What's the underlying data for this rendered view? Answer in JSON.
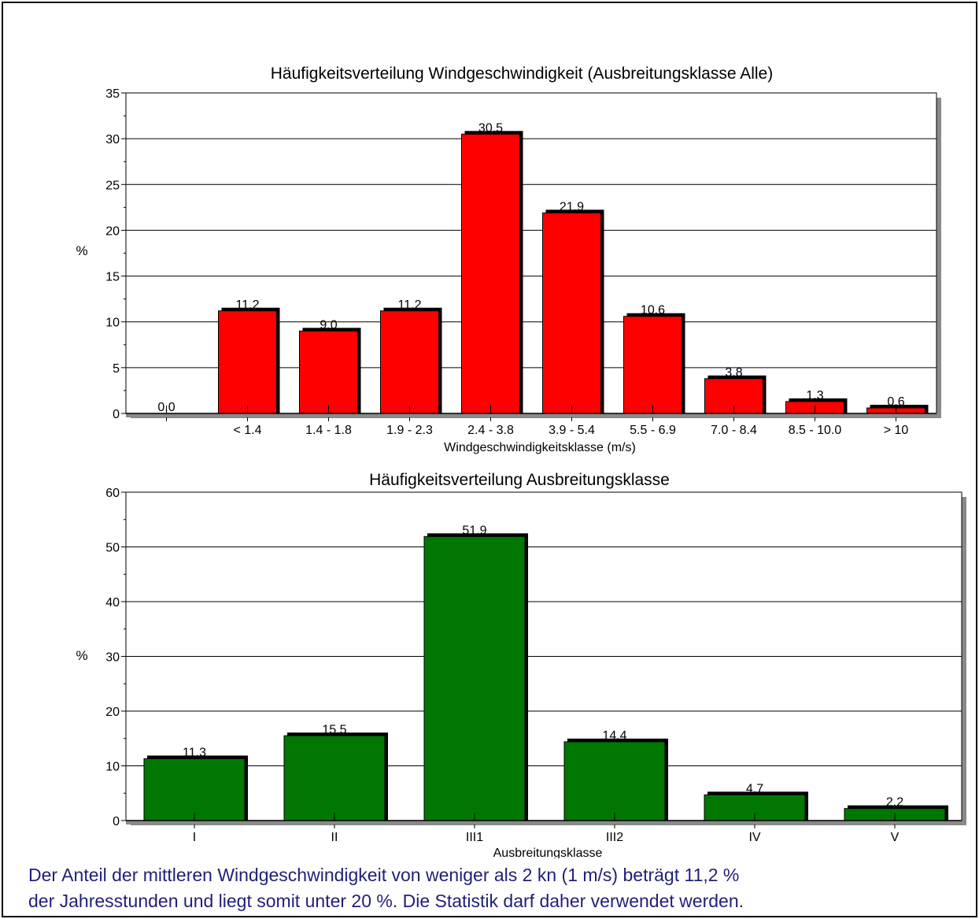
{
  "colors": {
    "chart1_bar": "#ff0000",
    "chart2_bar": "#007700",
    "shadow": "#000000",
    "plot_shadow": "#8a8a8a"
  },
  "chart_data": [
    {
      "type": "bar",
      "title": "Häufigkeitsverteilung Windgeschwindigkeit (Ausbreitungsklasse Alle)",
      "xlabel": "Windgeschwindigkeitsklasse (m/s)",
      "ylabel": "%",
      "ylim": [
        0,
        35
      ],
      "yticks": [
        "0",
        "5",
        "10",
        "15",
        "20",
        "25",
        "30",
        "35"
      ],
      "grid": true,
      "categories": [
        "",
        "< 1.4",
        "1.4 - 1.8",
        "1.9 - 2.3",
        "2.4 - 3.8",
        "3.9 - 5.4",
        "5.5 - 6.9",
        "7.0 - 8.4",
        "8.5 - 10.0",
        "> 10"
      ],
      "values": [
        0.0,
        11.2,
        9.0,
        11.2,
        30.5,
        21.9,
        10.6,
        3.8,
        1.3,
        0.6
      ],
      "value_labels": [
        "0.0",
        "11.2",
        "9.0",
        "11.2",
        "30.5",
        "21.9",
        "10.6",
        "3.8",
        "1.3",
        "0.6"
      ]
    },
    {
      "type": "bar",
      "title": "Häufigkeitsverteilung Ausbreitungsklasse",
      "xlabel": "Ausbreitungsklasse",
      "ylabel": "%",
      "ylim": [
        0,
        60
      ],
      "yticks": [
        "0",
        "10",
        "20",
        "30",
        "40",
        "50",
        "60"
      ],
      "grid": true,
      "categories": [
        "I",
        "II",
        "III1",
        "III2",
        "IV",
        "V"
      ],
      "values": [
        11.3,
        15.5,
        51.9,
        14.4,
        4.7,
        2.2
      ],
      "value_labels": [
        "11.3",
        "15.5",
        "51.9",
        "14.4",
        "4.7",
        "2.2"
      ]
    }
  ],
  "caption": {
    "line1": "Der Anteil der mittleren Windgeschwindigkeit von weniger als 2 kn (1 m/s) beträgt 11,2 %",
    "line2": "der Jahresstunden und liegt somit unter 20 %. Die Statistik darf daher verwendet werden."
  }
}
